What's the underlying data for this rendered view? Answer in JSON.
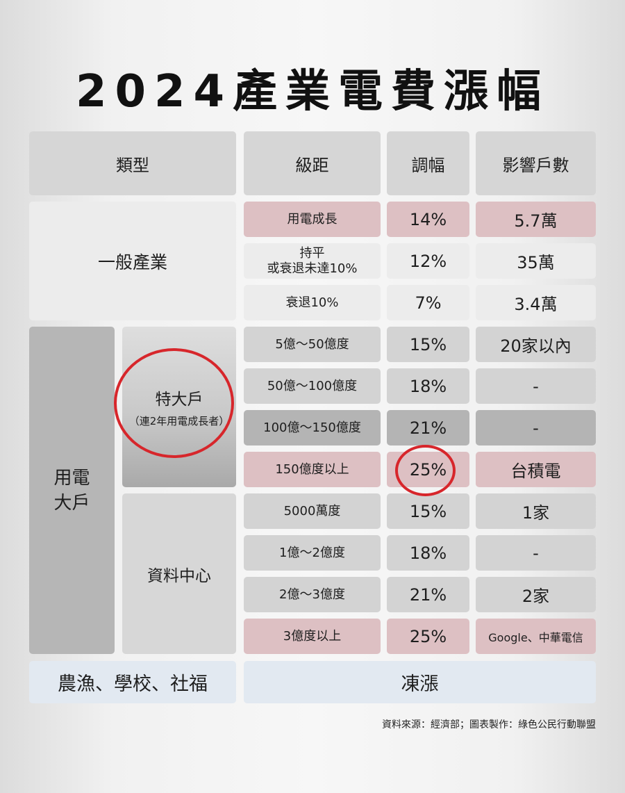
{
  "title": "2024產業電費漲幅",
  "headers": {
    "type": "類型",
    "level": "級距",
    "rate": "調幅",
    "households": "影響戶數"
  },
  "general": {
    "category": "一般產業",
    "rows": [
      {
        "level": "用電成長",
        "rate": "14%",
        "households": "5.7萬"
      },
      {
        "level_line1": "持平",
        "level_line2": "或衰退未達10%",
        "rate": "12%",
        "households": "35萬"
      },
      {
        "level": "衰退10%",
        "rate": "7%",
        "households": "3.4萬"
      }
    ]
  },
  "large": {
    "category_line1": "用電",
    "category_line2": "大戶",
    "extra_large": {
      "label": "特大戶",
      "note": "（連2年用電成長者）",
      "rows": [
        {
          "level": "5億～50億度",
          "rate": "15%",
          "households": "20家以內"
        },
        {
          "level": "50億～100億度",
          "rate": "18%",
          "households": "-"
        },
        {
          "level": "100億～150億度",
          "rate": "21%",
          "households": "-"
        },
        {
          "level": "150億度以上",
          "rate": "25%",
          "households": "台積電"
        }
      ]
    },
    "data_center": {
      "label": "資料中心",
      "rows": [
        {
          "level": "5000萬度",
          "rate": "15%",
          "households": "1家"
        },
        {
          "level": "1億～2億度",
          "rate": "18%",
          "households": "-"
        },
        {
          "level": "2億～3億度",
          "rate": "21%",
          "households": "2家"
        },
        {
          "level": "3億度以上",
          "rate": "25%",
          "households": "Google、中華電信"
        }
      ]
    }
  },
  "frozen": {
    "category": "農漁、學校、社福",
    "value": "凍漲"
  },
  "source": "資料來源：經濟部；圖表製作：綠色公民行動聯盟",
  "colors": {
    "highlight_pink": "#ddc0c3",
    "circle_red": "#d7262b",
    "frozen_blue": "#e2e9f1"
  }
}
